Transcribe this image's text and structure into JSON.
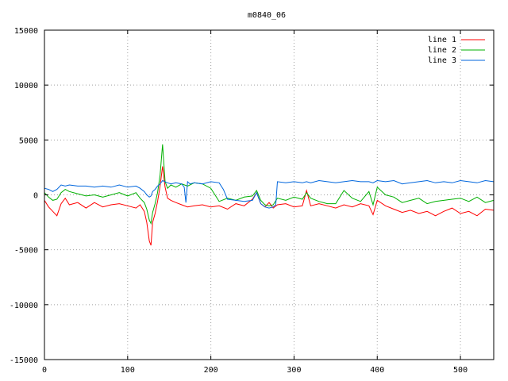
{
  "chart_data": {
    "type": "line",
    "title": "m0840_06",
    "xlabel": "",
    "ylabel": "",
    "xlim": [
      0,
      540
    ],
    "ylim": [
      -15000,
      15000
    ],
    "xticks": [
      0,
      100,
      200,
      300,
      400,
      500
    ],
    "yticks": [
      -15000,
      -10000,
      -5000,
      0,
      5000,
      10000,
      15000
    ],
    "grid": true,
    "legend_position": "top-right",
    "series": [
      {
        "name": "line 1",
        "color": "#ff0000",
        "x": [
          0,
          5,
          10,
          15,
          20,
          25,
          30,
          40,
          50,
          60,
          70,
          80,
          90,
          100,
          110,
          115,
          120,
          123,
          126,
          128,
          130,
          133,
          136,
          139,
          142,
          145,
          148,
          152,
          158,
          165,
          172,
          180,
          190,
          200,
          210,
          220,
          230,
          240,
          250,
          255,
          260,
          265,
          270,
          275,
          280,
          290,
          300,
          310,
          315,
          320,
          330,
          340,
          350,
          360,
          370,
          380,
          390,
          395,
          400,
          410,
          420,
          430,
          440,
          450,
          460,
          470,
          480,
          490,
          500,
          510,
          520,
          530,
          540
        ],
        "y": [
          -500,
          -1100,
          -1500,
          -1900,
          -800,
          -300,
          -900,
          -700,
          -1200,
          -700,
          -1100,
          -900,
          -800,
          -1000,
          -1200,
          -900,
          -1500,
          -2500,
          -4200,
          -4600,
          -2500,
          -1700,
          -600,
          800,
          2600,
          700,
          -300,
          -500,
          -700,
          -900,
          -1100,
          -1000,
          -900,
          -1100,
          -1000,
          -1300,
          -800,
          -1000,
          -400,
          200,
          -800,
          -1100,
          -700,
          -1200,
          -900,
          -800,
          -1100,
          -1000,
          400,
          -1000,
          -800,
          -1000,
          -1200,
          -900,
          -1100,
          -800,
          -1000,
          -1800,
          -500,
          -1000,
          -1300,
          -1600,
          -1400,
          -1700,
          -1500,
          -1900,
          -1500,
          -1200,
          -1700,
          -1500,
          -1900,
          -1300,
          -1400
        ]
      },
      {
        "name": "line 2",
        "color": "#00b000",
        "x": [
          0,
          5,
          10,
          15,
          20,
          25,
          30,
          40,
          50,
          60,
          70,
          80,
          90,
          100,
          110,
          115,
          120,
          123,
          126,
          128,
          130,
          133,
          136,
          139,
          142,
          145,
          148,
          152,
          158,
          165,
          172,
          180,
          190,
          200,
          210,
          220,
          230,
          240,
          250,
          255,
          260,
          265,
          270,
          275,
          280,
          290,
          300,
          310,
          315,
          320,
          330,
          340,
          350,
          360,
          370,
          380,
          390,
          395,
          400,
          410,
          420,
          430,
          440,
          450,
          460,
          470,
          480,
          490,
          500,
          510,
          520,
          530,
          540
        ],
        "y": [
          200,
          -200,
          -500,
          -400,
          200,
          500,
          300,
          100,
          -100,
          0,
          -200,
          0,
          200,
          -100,
          200,
          -300,
          -700,
          -1300,
          -2300,
          -2600,
          -1600,
          -800,
          200,
          1800,
          4600,
          1200,
          600,
          900,
          700,
          1000,
          800,
          1100,
          1000,
          600,
          -600,
          -300,
          -500,
          -200,
          -100,
          400,
          -500,
          -900,
          -1000,
          -900,
          -300,
          -500,
          -200,
          -400,
          200,
          -300,
          -600,
          -800,
          -800,
          400,
          -300,
          -600,
          300,
          -900,
          700,
          0,
          -200,
          -700,
          -500,
          -300,
          -800,
          -600,
          -500,
          -400,
          -300,
          -600,
          -200,
          -700,
          -500
        ]
      },
      {
        "name": "line 3",
        "color": "#0066dd",
        "x": [
          0,
          5,
          10,
          15,
          20,
          25,
          30,
          40,
          50,
          60,
          70,
          80,
          90,
          100,
          110,
          115,
          120,
          123,
          126,
          128,
          130,
          133,
          136,
          139,
          142,
          145,
          148,
          152,
          158,
          165,
          168,
          170,
          172,
          175,
          180,
          190,
          200,
          210,
          215,
          220,
          230,
          240,
          250,
          255,
          260,
          265,
          270,
          275,
          278,
          280,
          290,
          300,
          310,
          315,
          320,
          330,
          340,
          350,
          360,
          370,
          380,
          390,
          395,
          400,
          410,
          420,
          430,
          440,
          450,
          460,
          470,
          480,
          490,
          500,
          510,
          520,
          530,
          540
        ],
        "y": [
          600,
          500,
          300,
          500,
          900,
          800,
          900,
          800,
          800,
          700,
          800,
          700,
          900,
          700,
          800,
          600,
          300,
          0,
          -200,
          -100,
          300,
          500,
          800,
          1000,
          1300,
          1200,
          1100,
          1000,
          1100,
          1000,
          700,
          -700,
          1200,
          1000,
          1100,
          1000,
          1200,
          1100,
          500,
          -400,
          -500,
          -600,
          -500,
          200,
          -800,
          -1100,
          -1200,
          -1100,
          -900,
          1200,
          1100,
          1200,
          1100,
          1200,
          1100,
          1300,
          1200,
          1100,
          1200,
          1300,
          1200,
          1200,
          1100,
          1300,
          1200,
          1300,
          1000,
          1100,
          1200,
          1300,
          1100,
          1200,
          1100,
          1300,
          1200,
          1100,
          1300,
          1200
        ]
      }
    ]
  }
}
